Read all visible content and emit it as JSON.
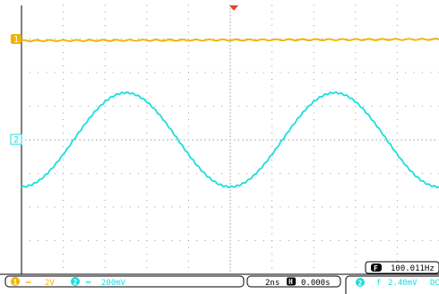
{
  "colors": {
    "ch1": "#f0b400",
    "ch2": "#19dedc",
    "grid": "#9a9a9a",
    "trigger": "#e8402a",
    "frame": "#000000",
    "text_dark": "#000000"
  },
  "channels": {
    "ch1": {
      "marker": "1",
      "number": "1",
      "coupling_symbol": "═",
      "scale": "2V",
      "trace_level_div": 2.95
    },
    "ch2": {
      "marker": "2",
      "number": "2",
      "coupling_symbol": "═",
      "scale": "200mV",
      "trace_amplitude_div": 1.4,
      "trace_periods": 2,
      "trace_start_phase_deg": 90
    }
  },
  "timebase": {
    "scale": "2ns",
    "h_icon": "H",
    "delay": "0.000s"
  },
  "frequency": {
    "icon": "F",
    "value": "100.011Hz"
  },
  "measurement": {
    "channel": "2",
    "symbol": "f",
    "value": "2.40mV",
    "extra": "DC"
  },
  "grid": {
    "h_divs": 10,
    "v_divs": 8
  }
}
